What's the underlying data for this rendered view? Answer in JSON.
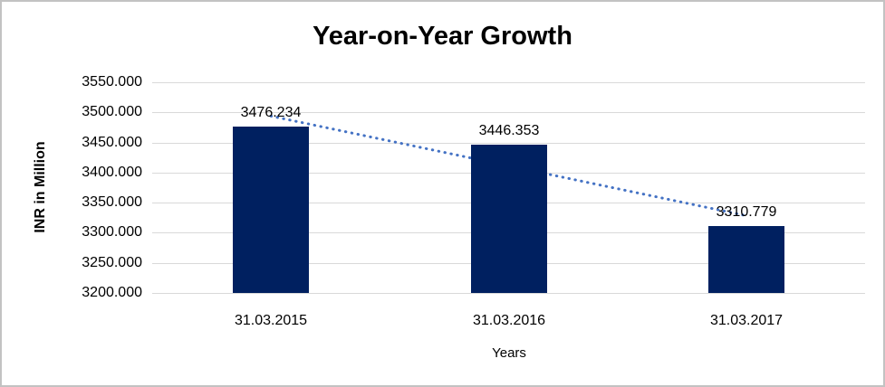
{
  "chart_data": {
    "type": "bar",
    "title": "Year-on-Year Growth",
    "categories": [
      "31.03.2015",
      "31.03.2016",
      "31.03.2017"
    ],
    "values": [
      3476.234,
      3446.353,
      3310.779
    ],
    "data_labels": [
      "3476.234",
      "3446.353",
      "3310.779"
    ],
    "xlabel": "Years",
    "ylabel": "INR in Million",
    "ylim": [
      3200,
      3550
    ],
    "ytick_step": 50,
    "ytick_labels": [
      "3550.000",
      "3500.000",
      "3450.000",
      "3400.000",
      "3350.000",
      "3300.000",
      "3250.000",
      "3200.000"
    ],
    "grid": "horizontal",
    "legend": "none",
    "trendline": {
      "type": "linear",
      "style": "dotted",
      "color": "#4472C4"
    },
    "colors": {
      "bar": "#002060",
      "trendline": "#4472C4",
      "gridline": "#D9D9D9",
      "text": "#000000",
      "frame_border": "#C2C2C2",
      "background": "#FFFFFF"
    }
  }
}
